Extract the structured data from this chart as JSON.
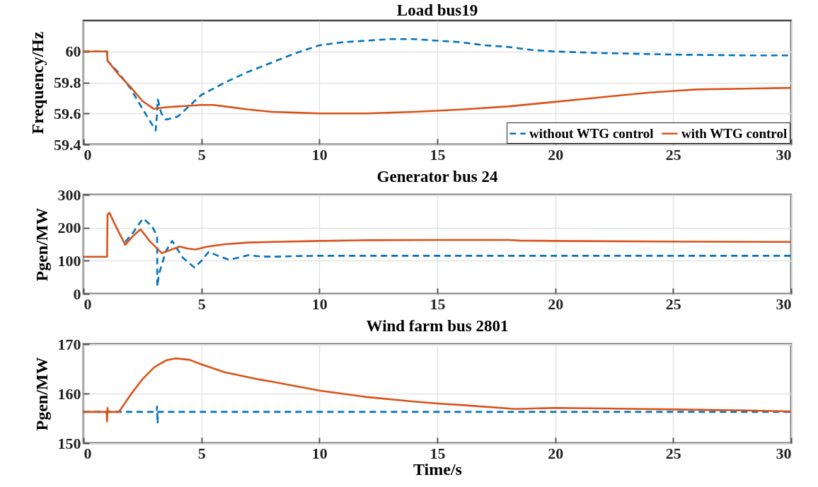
{
  "chart_data": [
    {
      "type": "line",
      "title": "Load bus19",
      "ylabel": "Frequency/Hz",
      "xlim": [
        0,
        30
      ],
      "xticks": [
        0,
        5,
        10,
        15,
        20,
        25,
        30
      ],
      "ylim": [
        59.4,
        60.2
      ],
      "yticks": [
        59.4,
        59.6,
        59.8,
        60
      ],
      "grid": true,
      "legend": "bottom right",
      "series": [
        {
          "name": "without WTG control",
          "color": "#0072bd",
          "line_style": "dashed",
          "x": [
            0,
            1,
            1.02,
            1.5,
            2,
            2.5,
            3.06,
            3.12,
            3.15,
            3.3,
            3.5,
            4,
            4.5,
            5,
            6,
            7,
            7.5,
            8,
            9,
            10,
            11,
            12,
            13,
            14,
            15,
            16,
            17,
            18,
            19,
            20,
            22,
            25,
            28,
            30
          ],
          "values": [
            60,
            60,
            59.94,
            59.86,
            59.76,
            59.63,
            59.49,
            59.6,
            59.69,
            59.6,
            59.56,
            59.58,
            59.65,
            59.72,
            59.8,
            59.87,
            59.9,
            59.93,
            59.99,
            60.04,
            60.06,
            60.07,
            60.08,
            60.08,
            60.07,
            60.06,
            60.04,
            60.03,
            60.01,
            60,
            59.99,
            59.98,
            59.975,
            59.975
          ]
        },
        {
          "name": "with WTG control",
          "color": "#d95319",
          "line_style": "solid",
          "x": [
            0,
            1,
            1.02,
            1.5,
            2,
            2.5,
            2.97,
            3.5,
            4,
            5,
            5.5,
            6,
            7,
            8,
            9,
            10,
            11,
            12,
            14,
            16,
            18,
            20,
            22,
            24,
            25,
            26,
            28,
            30
          ],
          "values": [
            60,
            60,
            59.94,
            59.85,
            59.77,
            59.68,
            59.63,
            59.64,
            59.645,
            59.655,
            59.655,
            59.645,
            59.625,
            59.61,
            59.605,
            59.6,
            59.6,
            59.6,
            59.61,
            59.625,
            59.645,
            59.675,
            59.705,
            59.735,
            59.745,
            59.755,
            59.76,
            59.765
          ]
        }
      ]
    },
    {
      "type": "line",
      "title": "Generator bus 24",
      "ylabel": "Pgen/MW",
      "xlim": [
        0,
        30
      ],
      "xticks": [
        0,
        5,
        10,
        15,
        20,
        25,
        30
      ],
      "ylim": [
        0,
        300
      ],
      "yticks": [
        0,
        100,
        200,
        300
      ],
      "grid": true,
      "series": [
        {
          "color": "#0072bd",
          "line_style": "dashed",
          "x": [
            1.77,
            2.1,
            2.52,
            2.9,
            3.12,
            3.13,
            3.2,
            3.5,
            3.76,
            4.2,
            4.71,
            5,
            5.31,
            5.7,
            6.16,
            6.6,
            7,
            7.5,
            8,
            9,
            10,
            15,
            20,
            25,
            30
          ],
          "values": [
            157,
            185,
            228,
            205,
            175,
            22,
            60,
            130,
            160,
            110,
            79,
            100,
            127,
            115,
            103,
            110,
            117,
            113,
            112,
            114,
            115,
            115,
            115,
            115,
            115
          ]
        },
        {
          "color": "#d95319",
          "line_style": "solid",
          "x": [
            0,
            1,
            1.02,
            1.1,
            1.4,
            1.77,
            2.1,
            2.42,
            2.8,
            3.32,
            3.7,
            4.07,
            4.4,
            4.76,
            5.2,
            6,
            7,
            8,
            10,
            12,
            15,
            18,
            18.5,
            20,
            25,
            30
          ],
          "values": [
            112,
            112,
            240,
            245,
            200,
            148,
            175,
            195,
            160,
            123,
            133,
            143,
            137,
            134,
            142,
            150,
            155,
            157,
            160,
            162,
            163,
            163,
            161,
            160,
            158,
            157
          ]
        }
      ]
    },
    {
      "type": "line",
      "title": "Wind farm bus 2801",
      "xlabel": "Time/s",
      "ylabel": "Pgen/MW",
      "xlim": [
        0,
        30
      ],
      "xticks": [
        0,
        5,
        10,
        15,
        20,
        25,
        30
      ],
      "ylim": [
        150,
        170
      ],
      "yticks": [
        150,
        160,
        170
      ],
      "grid": true,
      "series": [
        {
          "color": "#0072bd",
          "line_style": "dashed",
          "x": [
            0,
            3.1,
            3.12,
            3.14,
            3.16,
            3.2,
            10,
            20,
            30
          ],
          "values": [
            156.3,
            156.3,
            157.4,
            154,
            156.3,
            156.3,
            156.3,
            156.3,
            156.3
          ]
        },
        {
          "color": "#d95319",
          "line_style": "solid",
          "x": [
            0,
            0.98,
            1,
            1.02,
            1.04,
            1.5,
            2,
            2.5,
            3,
            3.5,
            3.92,
            4.5,
            5,
            6,
            7,
            7.5,
            8,
            9,
            10,
            12,
            14,
            15,
            16,
            18.3,
            20,
            22,
            25,
            28,
            30
          ],
          "values": [
            156.3,
            156.3,
            154.4,
            157.1,
            156.3,
            156.3,
            159.8,
            162.9,
            165.3,
            166.7,
            167.1,
            166.8,
            165.9,
            164.3,
            163.3,
            162.8,
            162.4,
            161.5,
            160.6,
            159.3,
            158.4,
            158,
            157.7,
            156.9,
            157.1,
            157,
            156.8,
            156.6,
            156.4
          ]
        }
      ]
    }
  ]
}
